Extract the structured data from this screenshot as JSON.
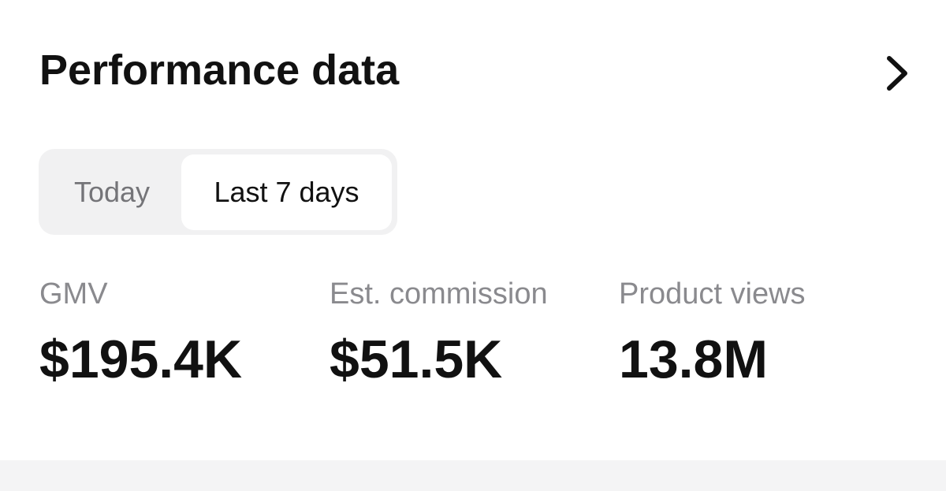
{
  "header": {
    "title": "Performance data"
  },
  "tabs": [
    "Today",
    "Last 7 days"
  ],
  "active_tab": 1,
  "metrics": [
    {
      "label": "GMV",
      "value": "$195.4K"
    },
    {
      "label": "Est. commission",
      "value": "$51.5K"
    },
    {
      "label": "Product views",
      "value": "13.8M"
    }
  ]
}
